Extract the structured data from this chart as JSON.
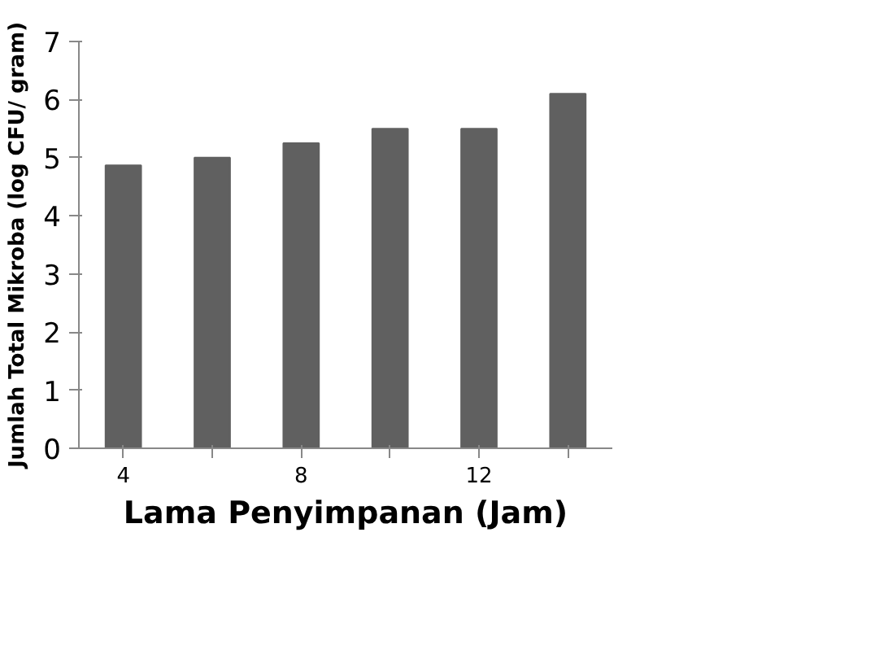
{
  "chart_data": {
    "type": "bar",
    "xlabel": "Lama Penyimpanan (Jam)",
    "ylabel": "Jumlah Total Mikroba (log CFU/ gram)",
    "categories": [
      "4",
      null,
      "8",
      null,
      "12",
      null
    ],
    "values": [
      4.87,
      5.0,
      5.25,
      5.5,
      5.5,
      6.1
    ],
    "color": "#606060",
    "ylim": [
      0,
      7
    ],
    "yticks": [
      0,
      1,
      2,
      3,
      4,
      5,
      6,
      7
    ],
    "grid": false
  }
}
